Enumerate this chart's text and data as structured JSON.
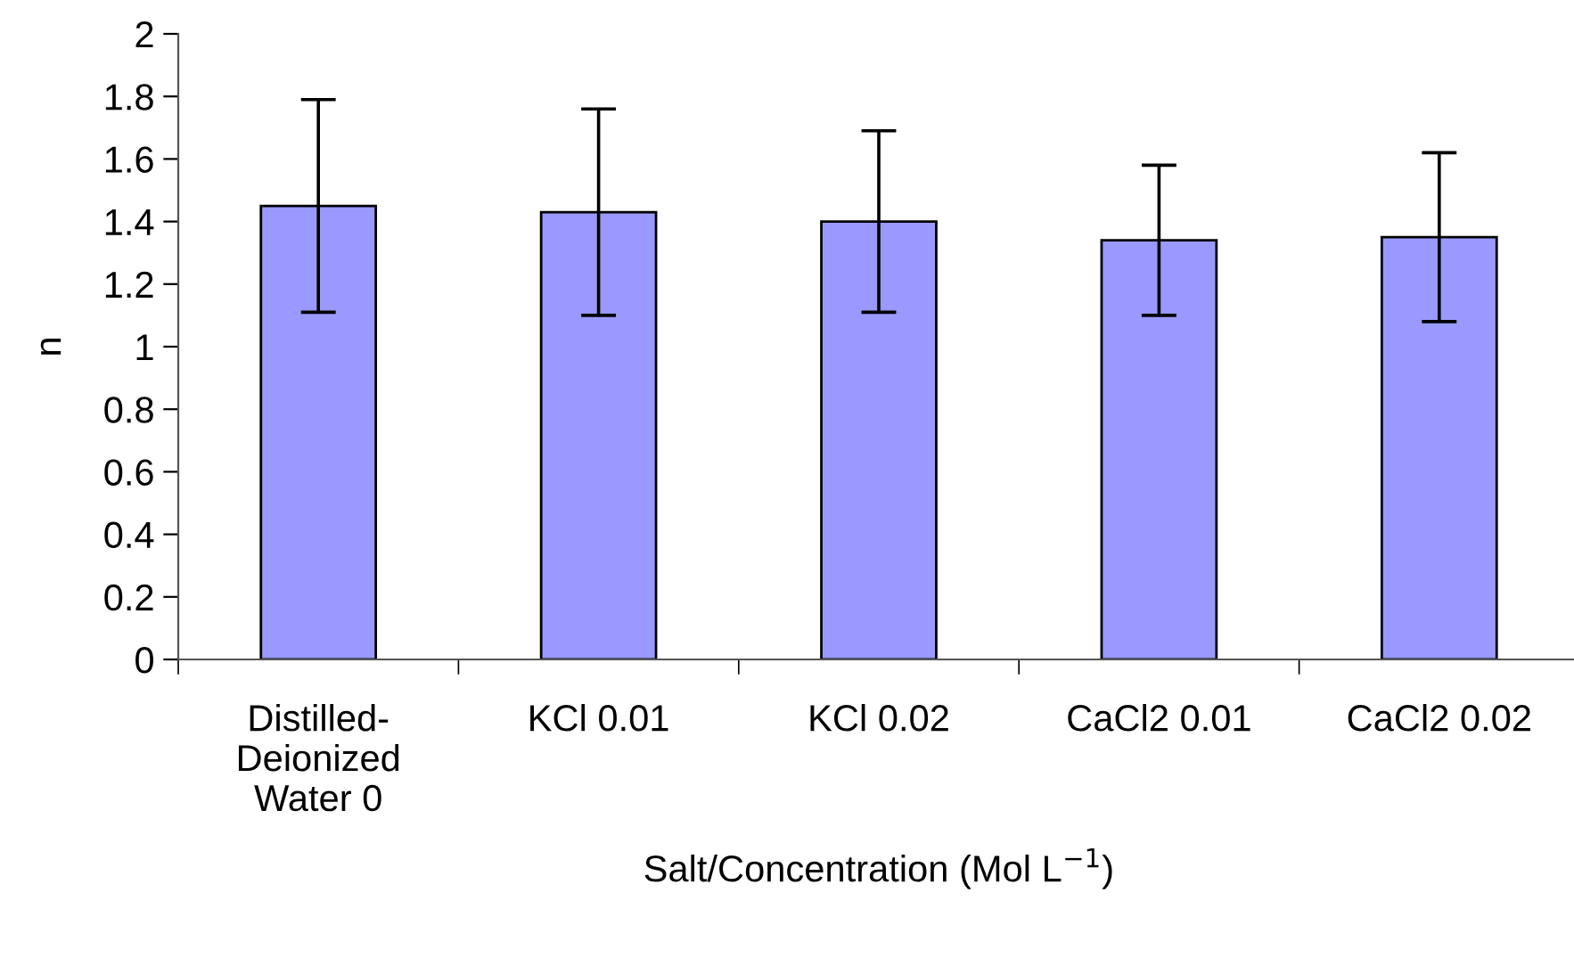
{
  "chart_data": {
    "type": "bar",
    "xlabel": "Salt/Concentration (Mol L$^{−1}$)",
    "ylabel": "n",
    "categories": [
      "Distilled-\nDeionized\nWater 0",
      "KCl 0.01",
      "KCl 0.02",
      "CaCl2 0.01",
      "CaCl2 0.02"
    ],
    "values": [
      1.45,
      1.43,
      1.4,
      1.34,
      1.35
    ],
    "errors": [
      0.34,
      0.33,
      0.29,
      0.24,
      0.27
    ],
    "color": "#9999ff",
    "ylim": [
      0,
      2
    ],
    "yticks": [
      0,
      0.2,
      0.4,
      0.6,
      0.8,
      1,
      1.2,
      1.4,
      1.6,
      1.8,
      2
    ],
    "grid": false,
    "legend": false
  }
}
